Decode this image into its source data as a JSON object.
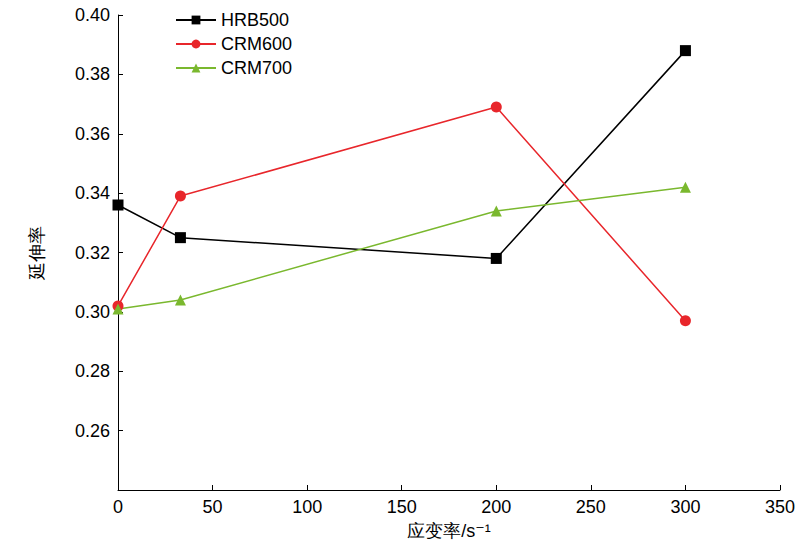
{
  "chart_data": {
    "type": "line",
    "x_label": "应变率/s⁻¹",
    "y_label": "延伸率",
    "x": [
      0,
      33,
      200,
      300
    ],
    "series": [
      {
        "name": "HRB500",
        "color": "#000000",
        "marker": "square",
        "values": [
          0.336,
          0.325,
          0.318,
          0.388
        ]
      },
      {
        "name": "CRM600",
        "color": "#e8262b",
        "marker": "circle",
        "values": [
          0.302,
          0.339,
          0.369,
          0.297
        ]
      },
      {
        "name": "CRM700",
        "color": "#7ab82e",
        "marker": "triangle",
        "values": [
          0.301,
          0.304,
          0.334,
          0.342
        ]
      }
    ],
    "xlim": [
      0,
      350
    ],
    "xticks": [
      0,
      50,
      100,
      150,
      200,
      250,
      300,
      350
    ],
    "ylim": [
      0.24,
      0.4
    ],
    "yticks": [
      0.26,
      0.28,
      {
        "value": 0.3,
        "label": "0.30"
      },
      0.32,
      0.34,
      0.36,
      0.38,
      {
        "value": 0.4,
        "label": "0.40"
      }
    ],
    "grid": false,
    "legend": "upper left"
  }
}
